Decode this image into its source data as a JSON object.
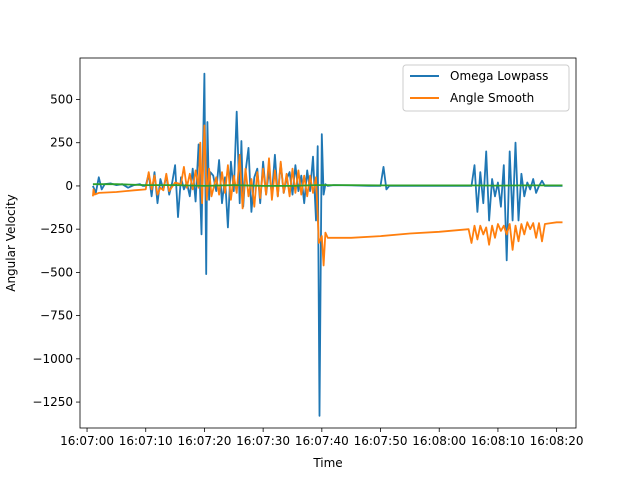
{
  "chart_data": {
    "type": "line",
    "title": "",
    "xlabel": "Time",
    "ylabel": "Angular Velocity",
    "x_tick_labels": [
      "16:07:00",
      "16:07:10",
      "16:07:20",
      "16:07:30",
      "16:07:40",
      "16:07:50",
      "16:08:00",
      "16:08:10",
      "16:08:20"
    ],
    "y_tick_labels": [
      "500",
      "250",
      "0",
      "−250",
      "−500",
      "−750",
      "−1000",
      "−1250"
    ],
    "y_tick_values": [
      500,
      250,
      0,
      -250,
      -500,
      -750,
      -1000,
      -1250
    ],
    "xlim": [
      -1.2,
      83.3
    ],
    "ylim": [
      -1400,
      740
    ],
    "grid": false,
    "legend_position": "top-right",
    "colors": {
      "omega": "#1f77b4",
      "angle": "#ff7f0e",
      "third": "#2ca02c"
    },
    "series": [
      {
        "name": "Omega Lowpass",
        "x": [
          1,
          1.5,
          2,
          2.5,
          3,
          4,
          5,
          6,
          7,
          8,
          9,
          9.5,
          10,
          10.5,
          11,
          11.5,
          12,
          12.5,
          13,
          13.5,
          14,
          14.5,
          15,
          15.5,
          16,
          16.5,
          17,
          17.5,
          18,
          18.5,
          19,
          19.5,
          20,
          20.3,
          20.5,
          20.8,
          21,
          21.5,
          22,
          22.5,
          23,
          23.5,
          24,
          24.5,
          25,
          25.5,
          26,
          26.3,
          26.6,
          27,
          27.5,
          28,
          28.5,
          29,
          29.5,
          30,
          30.5,
          31,
          31.5,
          32,
          32.5,
          33,
          33.5,
          34,
          34.5,
          35,
          35.5,
          36,
          36.5,
          37,
          37.5,
          38,
          38.5,
          39,
          39.3,
          39.6,
          40,
          40.3,
          40.6,
          41,
          42,
          45,
          48,
          50,
          50.5,
          51,
          51.5,
          52,
          55,
          60,
          65,
          65.5,
          66,
          66.5,
          67,
          67.5,
          68,
          68.5,
          69,
          69.5,
          70,
          70.5,
          71,
          71.5,
          72,
          72.5,
          73,
          73.5,
          74,
          74.5,
          75,
          75.5,
          76,
          76.5,
          77,
          77.5,
          78,
          79,
          80,
          81
        ],
        "values": [
          0,
          -40,
          50,
          -20,
          10,
          15,
          5,
          10,
          -10,
          5,
          10,
          0,
          0,
          70,
          -60,
          80,
          -100,
          40,
          -20,
          60,
          -50,
          20,
          120,
          -180,
          50,
          -20,
          20,
          -60,
          100,
          -90,
          240,
          -280,
          650,
          -510,
          370,
          -80,
          80,
          60,
          -30,
          150,
          -100,
          50,
          -240,
          140,
          -30,
          430,
          -100,
          260,
          -120,
          80,
          220,
          -150,
          50,
          100,
          -100,
          140,
          -50,
          90,
          -50,
          180,
          -60,
          130,
          -40,
          40,
          80,
          -50,
          120,
          -30,
          60,
          -100,
          90,
          -30,
          170,
          -200,
          230,
          -1330,
          300,
          -50,
          10,
          0,
          5,
          3,
          0,
          0,
          110,
          -20,
          0,
          0,
          0,
          0,
          0,
          0,
          120,
          -150,
          80,
          -100,
          200,
          -200,
          40,
          -60,
          20,
          -120,
          120,
          -430,
          200,
          -200,
          250,
          -200,
          70,
          -60,
          20,
          -20,
          40,
          -40,
          0,
          30,
          0,
          0,
          0,
          0
        ]
      },
      {
        "name": "Angle Smooth",
        "x": [
          1,
          1.1,
          1.3,
          2,
          5,
          8,
          10,
          10.5,
          11,
          11.5,
          12,
          12.5,
          13,
          13.5,
          14,
          15,
          16,
          16.5,
          17,
          17.5,
          18,
          18.5,
          19,
          19.3,
          19.6,
          20,
          20.4,
          20.8,
          21.2,
          22,
          22.5,
          23,
          23.5,
          24,
          24.5,
          25,
          25.5,
          26,
          26.5,
          27,
          27.5,
          28,
          28.5,
          29,
          29.5,
          30,
          30.5,
          31,
          31.5,
          32,
          32.5,
          33,
          33.5,
          34,
          34.5,
          35,
          35.5,
          36,
          36.5,
          37,
          37.5,
          38,
          38.5,
          39,
          39.5,
          40,
          40.3,
          40.6,
          41,
          45,
          50,
          55,
          60,
          65,
          65.5,
          66,
          66.5,
          67,
          67.5,
          68,
          68.5,
          69,
          69.5,
          70,
          70.5,
          71,
          71.5,
          72,
          72.5,
          73,
          73.5,
          74,
          74.5,
          75,
          75.5,
          76,
          76.5,
          77,
          77.5,
          78,
          79,
          80,
          81
        ],
        "values": [
          -60,
          -20,
          -50,
          -40,
          -35,
          -25,
          -20,
          80,
          -20,
          60,
          -50,
          -10,
          -25,
          70,
          -30,
          20,
          10,
          110,
          -10,
          70,
          -20,
          90,
          -10,
          250,
          -100,
          350,
          -80,
          100,
          -60,
          50,
          -50,
          80,
          -40,
          120,
          -80,
          60,
          -40,
          180,
          -130,
          100,
          -60,
          40,
          -120,
          80,
          -70,
          100,
          -50,
          160,
          -80,
          90,
          -60,
          140,
          -40,
          70,
          -60,
          100,
          -40,
          90,
          -50,
          60,
          -60,
          60,
          -40,
          50,
          -330,
          -290,
          -460,
          -270,
          -300,
          -300,
          -290,
          -275,
          -265,
          -250,
          -330,
          -230,
          -310,
          -230,
          -280,
          -240,
          -340,
          -230,
          -300,
          -220,
          -260,
          -230,
          -280,
          -220,
          -370,
          -230,
          -320,
          -220,
          -280,
          -210,
          -250,
          -215,
          -300,
          -215,
          -320,
          -220,
          -215,
          -210,
          -210
        ]
      },
      {
        "name": "",
        "x": [
          1,
          5,
          10,
          15,
          20,
          25,
          30,
          35,
          39,
          40,
          45,
          50,
          55,
          60,
          65,
          70,
          75,
          81
        ],
        "values": [
          10,
          10,
          5,
          5,
          0,
          5,
          0,
          0,
          5,
          5,
          5,
          3,
          3,
          3,
          3,
          2,
          3,
          3
        ]
      }
    ]
  }
}
